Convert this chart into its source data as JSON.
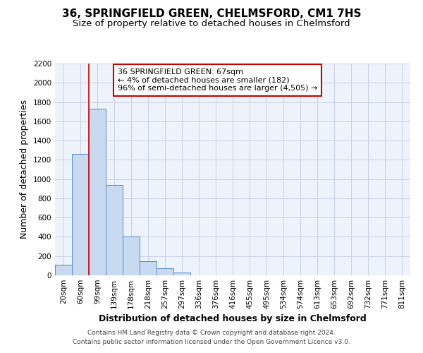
{
  "title": "36, SPRINGFIELD GREEN, CHELMSFORD, CM1 7HS",
  "subtitle": "Size of property relative to detached houses in Chelmsford",
  "xlabel": "Distribution of detached houses by size in Chelmsford",
  "ylabel": "Number of detached properties",
  "bin_labels": [
    "20sqm",
    "60sqm",
    "99sqm",
    "139sqm",
    "178sqm",
    "218sqm",
    "257sqm",
    "297sqm",
    "336sqm",
    "376sqm",
    "416sqm",
    "455sqm",
    "495sqm",
    "534sqm",
    "574sqm",
    "613sqm",
    "653sqm",
    "692sqm",
    "732sqm",
    "771sqm",
    "811sqm"
  ],
  "bar_heights": [
    110,
    1265,
    1730,
    940,
    400,
    150,
    75,
    30,
    0,
    0,
    0,
    0,
    0,
    0,
    0,
    0,
    0,
    0,
    0,
    0,
    0
  ],
  "bar_color": "#c8daf0",
  "bar_edge_color": "#5588cc",
  "background_color": "#eef2fa",
  "grid_color": "#c8d0e8",
  "ylim": [
    0,
    2200
  ],
  "yticks": [
    0,
    200,
    400,
    600,
    800,
    1000,
    1200,
    1400,
    1600,
    1800,
    2000,
    2200
  ],
  "red_line_color": "#cc0000",
  "annotation_text": "36 SPRINGFIELD GREEN: 67sqm\n← 4% of detached houses are smaller (182)\n96% of semi-detached houses are larger (4,505) →",
  "annotation_box_color": "#ffffff",
  "annotation_box_edge": "#cc0000",
  "footer_line1": "Contains HM Land Registry data © Crown copyright and database right 2024.",
  "footer_line2": "Contains public sector information licensed under the Open Government Licence v3.0.",
  "title_fontsize": 11,
  "subtitle_fontsize": 9.5,
  "axis_label_fontsize": 9,
  "tick_fontsize": 7.5,
  "annotation_fontsize": 8,
  "footer_fontsize": 6.5
}
